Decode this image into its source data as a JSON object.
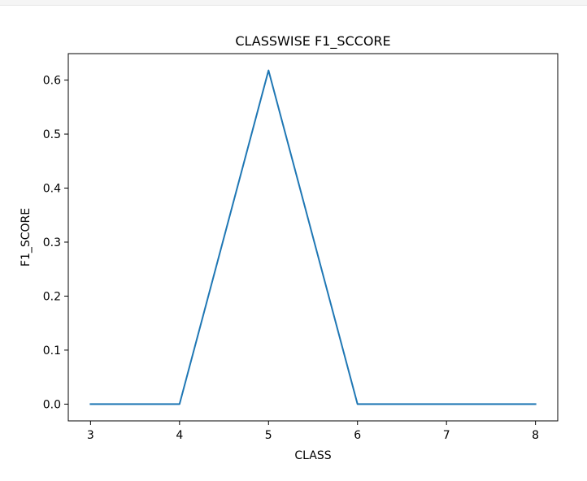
{
  "chart_data": {
    "type": "line",
    "title": "CLASSWISE F1_SCCORE",
    "xlabel": "CLASS",
    "ylabel": "F1_SCORE",
    "x": [
      3,
      4,
      5,
      6,
      7,
      8
    ],
    "series": [
      {
        "values": [
          0.0,
          0.0,
          0.618,
          0.0,
          0.0,
          0.0
        ],
        "color": "#1f77b4"
      }
    ],
    "xlim": [
      2.75,
      8.25
    ],
    "ylim": [
      -0.031,
      0.649
    ],
    "xticks": [
      3,
      4,
      5,
      6,
      7,
      8
    ],
    "xtick_labels": [
      "3",
      "4",
      "5",
      "6",
      "7",
      "8"
    ],
    "yticks": [
      0.0,
      0.1,
      0.2,
      0.3,
      0.4,
      0.5,
      0.6
    ],
    "ytick_labels": [
      "0.0",
      "0.1",
      "0.2",
      "0.3",
      "0.4",
      "0.5",
      "0.6"
    ],
    "grid": false,
    "legend": "none"
  }
}
